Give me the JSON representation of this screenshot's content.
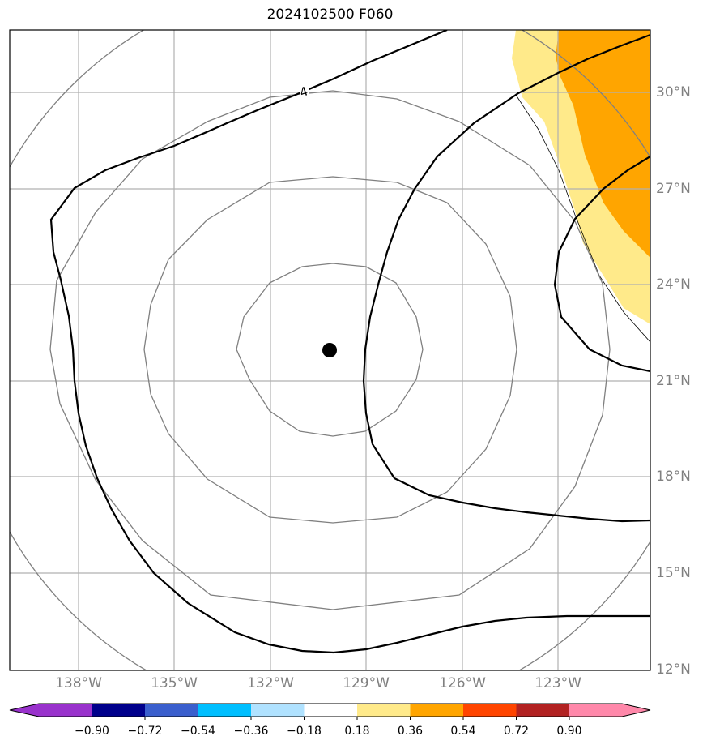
{
  "title": "2024102500 F060",
  "map": {
    "lon_ticks": [
      "138°W",
      "135°W",
      "132°W",
      "129°W",
      "126°W",
      "123°W"
    ],
    "lat_ticks": [
      "30°N",
      "27°N",
      "24°N",
      "21°N",
      "18°N",
      "15°N",
      "12°N"
    ],
    "contour_label": "4",
    "center_marker": "storm-center-dot",
    "colors": {
      "frame": "#000000",
      "gridlines": "#b0b0b0",
      "range_rings": "#808080",
      "contours": "#000000",
      "fill_light": "#ffea8a",
      "fill_dark": "#ffa500"
    }
  },
  "colorbar": {
    "ticks": [
      "−0.90",
      "−0.72",
      "−0.54",
      "−0.36",
      "−0.18",
      "0.18",
      "0.36",
      "0.54",
      "0.72",
      "0.90"
    ],
    "colors": [
      "#9932cc",
      "#00008b",
      "#3a5fcd",
      "#00bfff",
      "#b0e2ff",
      "#ffffff",
      "#ffea8a",
      "#ffa500",
      "#ff4500",
      "#b22222",
      "#ff88aa",
      "#ff88aa"
    ]
  }
}
